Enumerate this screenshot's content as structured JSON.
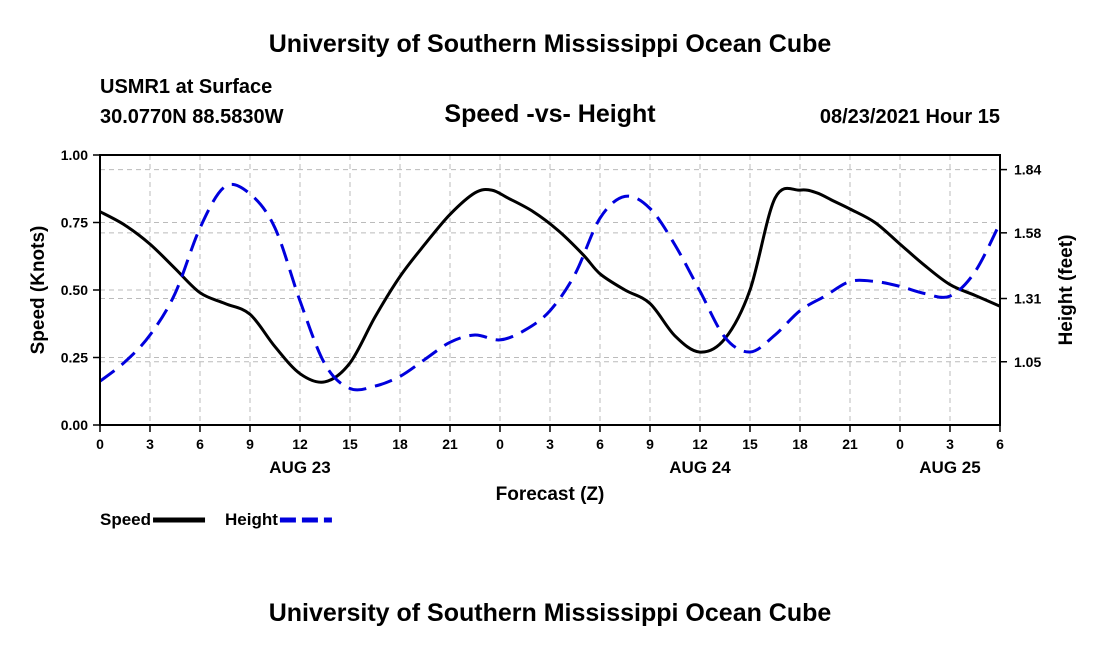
{
  "header": {
    "top_title": "University of Southern Mississippi Ocean Cube",
    "station": "USMR1 at Surface",
    "coords": "30.0770N  88.5830W",
    "chart_title": "Speed -vs- Height",
    "date": "08/23/2021 Hour 15",
    "bottom_title": "University of Southern Mississippi Ocean Cube"
  },
  "chart_data": {
    "type": "line",
    "title": "Speed -vs- Height",
    "xlabel": "Forecast (Z)",
    "ylabel": "Speed (Knots)",
    "y2label": "Height (feet)",
    "xlim": [
      0,
      54
    ],
    "x_ticks": [
      0,
      3,
      6,
      9,
      12,
      15,
      18,
      21,
      24,
      27,
      30,
      33,
      36,
      39,
      42,
      45,
      48,
      51,
      54
    ],
    "x_tick_labels": [
      "0",
      "3",
      "6",
      "9",
      "12",
      "15",
      "18",
      "21",
      "0",
      "3",
      "6",
      "9",
      "12",
      "15",
      "18",
      "21",
      "0",
      "3",
      "6"
    ],
    "date_labels": [
      {
        "x": 12,
        "label": "AUG 23"
      },
      {
        "x": 36,
        "label": "AUG 24"
      },
      {
        "x": 51,
        "label": "AUG 25"
      }
    ],
    "ylim": [
      0,
      1
    ],
    "y_ticks": [
      0,
      0.25,
      0.5,
      0.75,
      1.0
    ],
    "y_tick_labels": [
      "0.00",
      "0.25",
      "0.50",
      "0.75",
      "1.00"
    ],
    "y2lim": [
      0.79,
      1.9
    ],
    "y2_ticks": [
      1.05,
      1.31,
      1.58,
      1.84
    ],
    "y2_tick_labels": [
      "1.05",
      "1.31",
      "1.58",
      "1.84"
    ],
    "grid": true,
    "series": [
      {
        "name": "Speed",
        "axis": "left",
        "color": "#000000",
        "dash": false,
        "x": [
          0,
          1.5,
          3,
          4.5,
          6,
          7.5,
          9,
          10.5,
          12,
          13.5,
          15,
          16.5,
          18,
          19.5,
          21,
          22.5,
          23.5,
          24.5,
          26,
          27.5,
          29,
          30,
          31.5,
          33,
          34.5,
          36,
          37.5,
          39,
          40.5,
          42,
          43,
          44,
          45,
          46.5,
          48,
          49.5,
          51,
          52.5,
          54
        ],
        "values": [
          0.79,
          0.74,
          0.67,
          0.58,
          0.49,
          0.45,
          0.41,
          0.29,
          0.19,
          0.16,
          0.23,
          0.4,
          0.55,
          0.67,
          0.78,
          0.86,
          0.87,
          0.84,
          0.79,
          0.72,
          0.63,
          0.56,
          0.5,
          0.45,
          0.33,
          0.27,
          0.32,
          0.5,
          0.84,
          0.87,
          0.86,
          0.83,
          0.8,
          0.75,
          0.67,
          0.59,
          0.52,
          0.48,
          0.44
        ]
      },
      {
        "name": "Height",
        "axis": "right",
        "color": "#0000dd",
        "dash": true,
        "x": [
          0,
          1.5,
          3,
          4.5,
          6,
          7.5,
          9,
          10.5,
          12,
          13.5,
          15,
          16.5,
          18,
          19.5,
          21,
          22.5,
          24,
          25.5,
          27,
          28.5,
          30,
          31.5,
          33,
          34.5,
          36,
          37.5,
          39,
          40.5,
          42,
          43.5,
          45,
          46.5,
          48,
          49.5,
          51,
          52.5,
          54
        ],
        "values": [
          0.97,
          1.05,
          1.16,
          1.33,
          1.6,
          1.77,
          1.74,
          1.6,
          1.3,
          1.04,
          0.94,
          0.95,
          0.99,
          1.06,
          1.13,
          1.16,
          1.14,
          1.18,
          1.26,
          1.41,
          1.64,
          1.73,
          1.68,
          1.53,
          1.34,
          1.15,
          1.09,
          1.16,
          1.26,
          1.32,
          1.38,
          1.38,
          1.36,
          1.33,
          1.32,
          1.42,
          1.62
        ]
      }
    ],
    "legend": [
      {
        "label": "Speed",
        "color": "#000000",
        "dash": false
      },
      {
        "label": "Height",
        "color": "#0000dd",
        "dash": true
      }
    ],
    "legend_position": "bottom-left"
  }
}
